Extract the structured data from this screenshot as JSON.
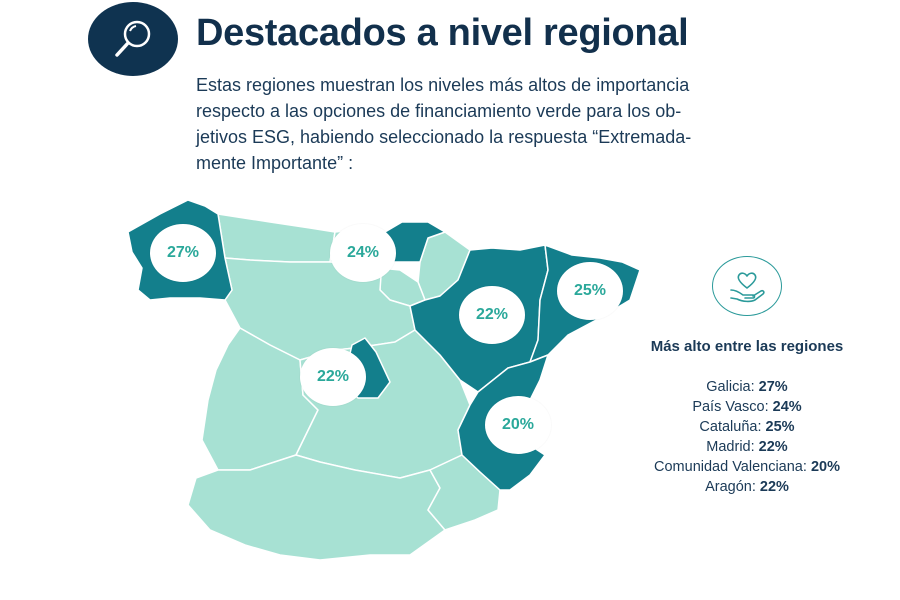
{
  "header": {
    "title": "Destacados a nivel regional",
    "subtitle_lines": [
      "Estas regiones muestran los niveles más altos de importancia",
      "respecto a las opciones de financiamiento verde para los ob-",
      "jetivos ESG, habiendo seleccionado la respuesta “Extremada-",
      "mente Importante” :"
    ],
    "icon": "magnifier-icon"
  },
  "map": {
    "colors": {
      "highlight": "#137f8c",
      "base": "#a7e1d3",
      "border": "#ffffff",
      "bubble_text": "#2aa89a"
    },
    "highlighted_regions": [
      {
        "region": "Galicia",
        "label": "27%"
      },
      {
        "region": "País Vasco",
        "label": "24%"
      },
      {
        "region": "Aragón",
        "label": "22%"
      },
      {
        "region": "Cataluña",
        "label": "25%"
      },
      {
        "region": "Madrid",
        "label": "22%"
      },
      {
        "region": "Comunidad Valenciana",
        "label": "20%"
      }
    ]
  },
  "sidebar": {
    "icon": "heart-hand-icon",
    "title": "Más alto entre las regiones",
    "items": [
      {
        "region": "Galicia:",
        "value": "27%"
      },
      {
        "region": "País Vasco:",
        "value": "24%"
      },
      {
        "region": "Cataluña:",
        "value": "25%"
      },
      {
        "region": "Madrid:",
        "value": "22%"
      },
      {
        "region": "Comunidad Valenciana:",
        "value": "20%"
      },
      {
        "region": "Aragón:",
        "value": "22%"
      }
    ]
  }
}
